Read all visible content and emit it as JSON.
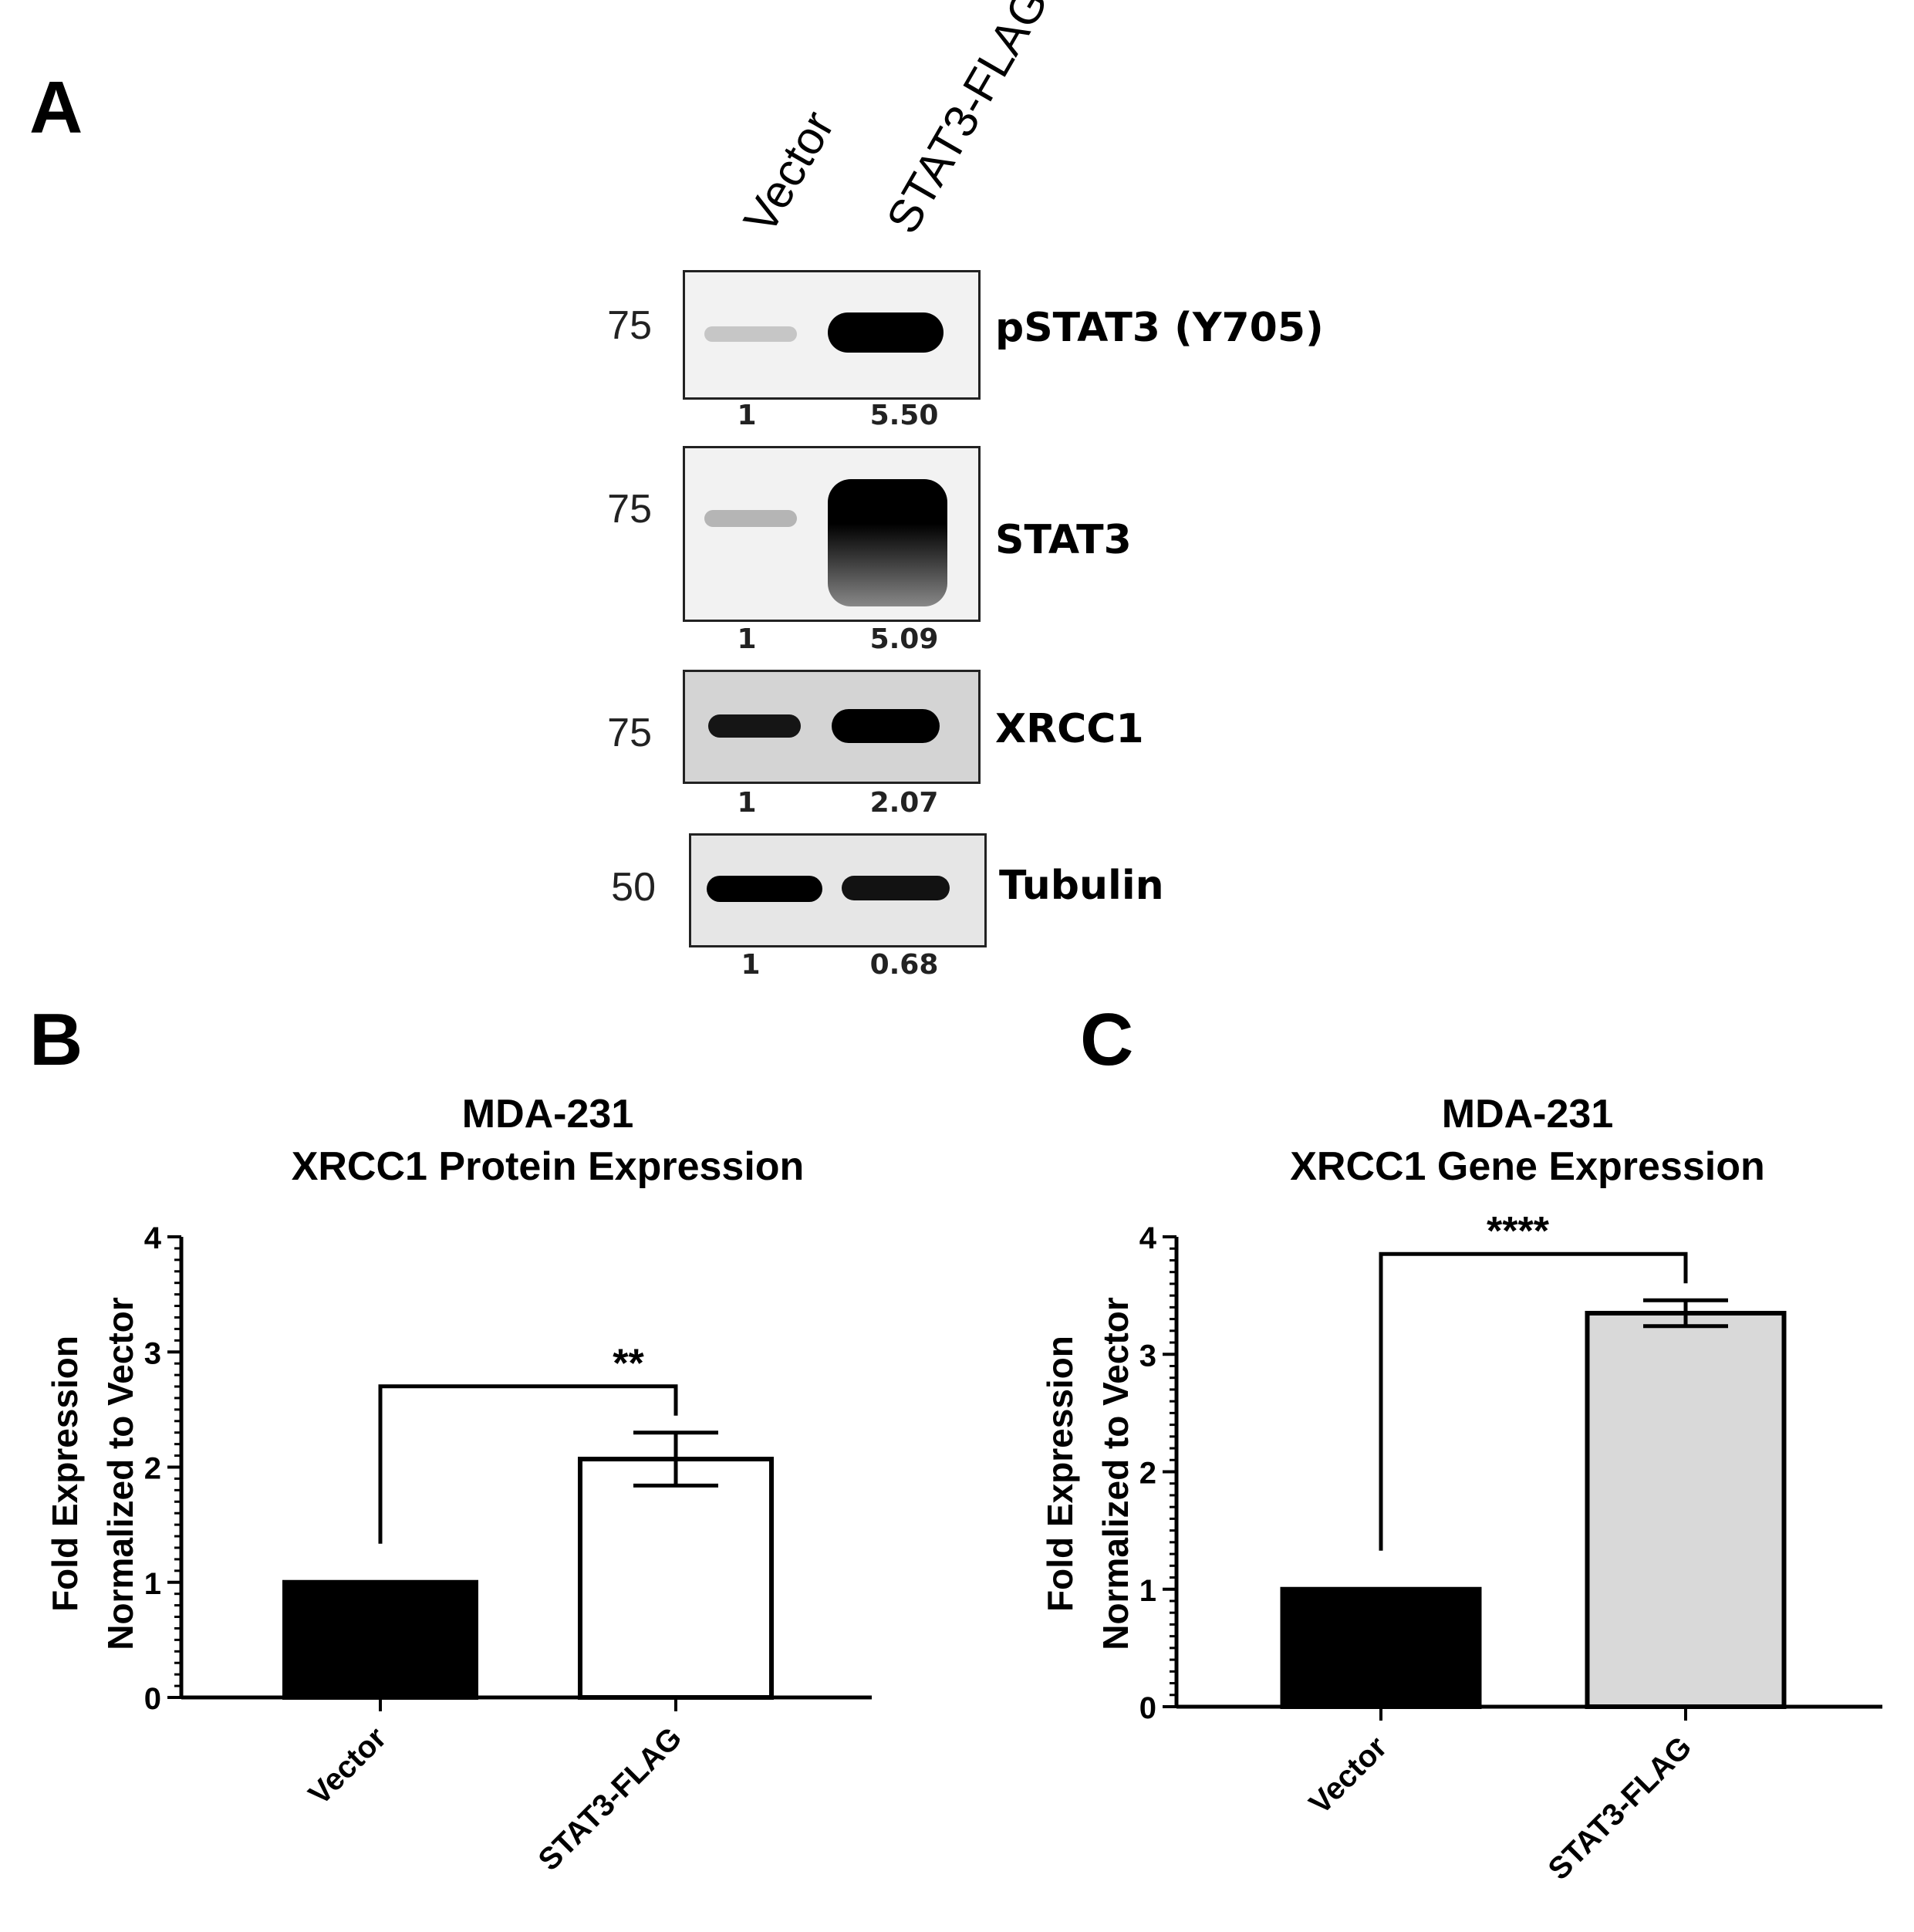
{
  "panels": {
    "a": {
      "letter": "A"
    },
    "b": {
      "letter": "B"
    },
    "c": {
      "letter": "C"
    }
  },
  "blot": {
    "lanes": [
      "Vector",
      "STAT3-FLAG"
    ],
    "rows": [
      {
        "mw": "75",
        "label": "pSTAT3 (Y705)",
        "quant": [
          "1",
          "5.50"
        ],
        "intensity": [
          0.18,
          1.0
        ]
      },
      {
        "mw": "75",
        "label": "STAT3",
        "quant": [
          "1",
          "5.09"
        ],
        "intensity": [
          0.25,
          1.0
        ]
      },
      {
        "mw": "75",
        "label": "XRCC1",
        "quant": [
          "1",
          "2.07"
        ],
        "intensity": [
          0.85,
          1.0
        ]
      },
      {
        "mw": "50",
        "label": "Tubulin",
        "quant": [
          "1",
          "0.68"
        ],
        "intensity": [
          1.0,
          0.9
        ]
      }
    ]
  },
  "chart_data": [
    {
      "type": "bar",
      "title_line1": "MDA-231",
      "title_line2": "XRCC1 Protein Expression",
      "ylabel_line1": "Fold Expression",
      "ylabel_line2": "Normalized to Vector",
      "categories": [
        "Vector",
        "STAT3-FLAG"
      ],
      "values": [
        1.0,
        2.07
      ],
      "errors": [
        0,
        0.23
      ],
      "bar_colors": [
        "#000000",
        "#ffffff"
      ],
      "ylim": [
        0,
        4
      ],
      "yticks": [
        "0",
        "1",
        "2",
        "3",
        "4"
      ],
      "significance": "**"
    },
    {
      "type": "bar",
      "title_line1": "MDA-231",
      "title_line2": "XRCC1 Gene  Expression",
      "ylabel_line1": "Fold Expression",
      "ylabel_line2": "Normalized to Vector",
      "categories": [
        "Vector",
        "STAT3-FLAG"
      ],
      "values": [
        1.0,
        3.35
      ],
      "errors": [
        0,
        0.11
      ],
      "bar_colors": [
        "#000000",
        "#d9d9d9"
      ],
      "ylim": [
        0,
        4
      ],
      "yticks": [
        "0",
        "1",
        "2",
        "3",
        "4"
      ],
      "significance": "****"
    }
  ]
}
